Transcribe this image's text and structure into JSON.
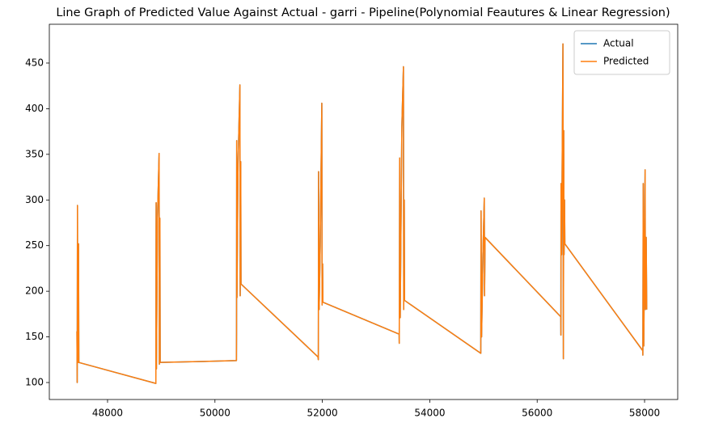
{
  "chart_data": {
    "type": "line",
    "title": "Line Graph of Predicted Value Against Actual - garri  - Pipeline(Polynomial Feautures & Linear Regression)",
    "x": [
      47430,
      47435,
      47440,
      47445,
      47450,
      47455,
      47460,
      47465,
      48900,
      48902,
      48905,
      48910,
      48930,
      48960,
      48965,
      48975,
      48980,
      50400,
      50402,
      50405,
      50410,
      50430,
      50465,
      50470,
      50480,
      50485,
      51920,
      51925,
      51930,
      51940,
      51960,
      51990,
      51995,
      52005,
      52010,
      53430,
      53432,
      53440,
      53450,
      53480,
      53510,
      53515,
      53525,
      53530,
      54950,
      54955,
      54965,
      54990,
      55015,
      55020,
      55030,
      56440,
      56442,
      56445,
      56455,
      56480,
      56488,
      56495,
      56500,
      56510,
      56515,
      57965,
      57968,
      57975,
      57985,
      58010,
      58015,
      58030,
      58040
    ],
    "series": [
      {
        "name": "Actual",
        "color": "#1f77b4",
        "values": [
          156,
          100,
          294,
          125,
          165,
          122,
          252,
          122,
          99,
          200,
          297,
          115,
          280,
          351,
          120,
          280,
          122,
          124,
          155,
          365,
          193,
          340,
          426,
          195,
          342,
          208,
          128,
          125,
          331,
          180,
          250,
          406,
          185,
          230,
          188,
          153,
          143,
          346,
          171,
          380,
          446,
          180,
          300,
          190,
          132,
          288,
          150,
          240,
          302,
          195,
          259,
          172,
          152,
          318,
          240,
          471,
          126,
          376,
          240,
          300,
          252,
          135,
          130,
          318,
          140,
          333,
          180,
          259,
          180
        ]
      },
      {
        "name": "Predicted",
        "color": "#ff7f0e",
        "values": [
          156,
          100,
          294,
          125,
          165,
          122,
          252,
          122,
          99,
          200,
          297,
          115,
          280,
          351,
          120,
          280,
          122,
          124,
          155,
          365,
          193,
          340,
          426,
          195,
          342,
          208,
          128,
          125,
          331,
          180,
          250,
          406,
          185,
          230,
          188,
          153,
          143,
          346,
          171,
          380,
          446,
          180,
          300,
          190,
          132,
          288,
          150,
          240,
          302,
          195,
          259,
          172,
          152,
          318,
          240,
          471,
          126,
          376,
          240,
          300,
          252,
          135,
          130,
          318,
          140,
          333,
          180,
          259,
          180
        ]
      }
    ],
    "xlim": [
      46916,
      58617
    ],
    "ylim": [
      81.4,
      492.5
    ],
    "xticks": [
      48000,
      50000,
      52000,
      54000,
      56000,
      58000
    ],
    "yticks": [
      100,
      150,
      200,
      250,
      300,
      350,
      400,
      450
    ],
    "legend": "upper right",
    "grid": false
  }
}
